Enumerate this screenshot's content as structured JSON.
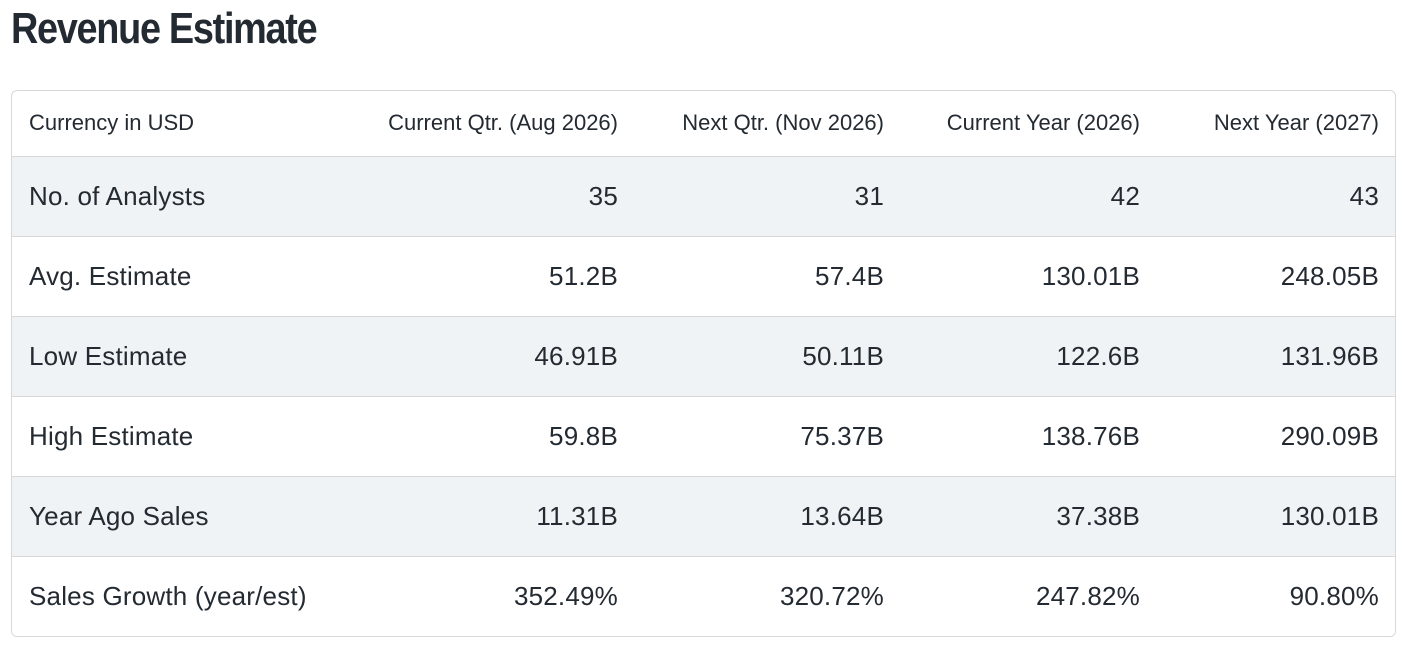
{
  "title": "Revenue Estimate",
  "table": {
    "headers": [
      "Currency in USD",
      "Current Qtr. (Aug 2026)",
      "Next Qtr. (Nov 2026)",
      "Current Year (2026)",
      "Next Year (2027)"
    ],
    "rows": [
      [
        "No. of Analysts",
        "35",
        "31",
        "42",
        "43"
      ],
      [
        "Avg. Estimate",
        "51.2B",
        "57.4B",
        "130.01B",
        "248.05B"
      ],
      [
        "Low Estimate",
        "46.91B",
        "50.11B",
        "122.6B",
        "131.96B"
      ],
      [
        "High Estimate",
        "59.8B",
        "75.37B",
        "138.76B",
        "290.09B"
      ],
      [
        "Year Ago Sales",
        "11.31B",
        "13.64B",
        "37.38B",
        "130.01B"
      ],
      [
        "Sales Growth (year/est)",
        "352.49%",
        "320.72%",
        "247.82%",
        "90.80%"
      ]
    ]
  }
}
